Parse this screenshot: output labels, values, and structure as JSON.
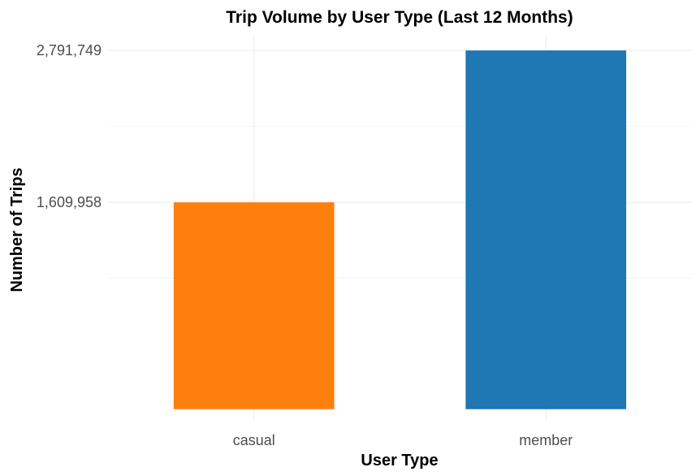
{
  "chart_data": {
    "type": "bar",
    "title": "Trip Volume by User Type (Last 12 Months)",
    "xlabel": "User Type",
    "ylabel": "Number of Trips",
    "categories": [
      "casual",
      "member"
    ],
    "values": [
      1609958,
      2791749
    ],
    "colors": [
      "#ff7f0e",
      "#1f77b4"
    ],
    "y_ticks": [
      1609958,
      2791749
    ],
    "y_tick_labels": [
      "1,609,958",
      "2,791,749"
    ],
    "ylim": [
      -90000,
      2900000
    ],
    "grid": true,
    "legend": "none"
  }
}
